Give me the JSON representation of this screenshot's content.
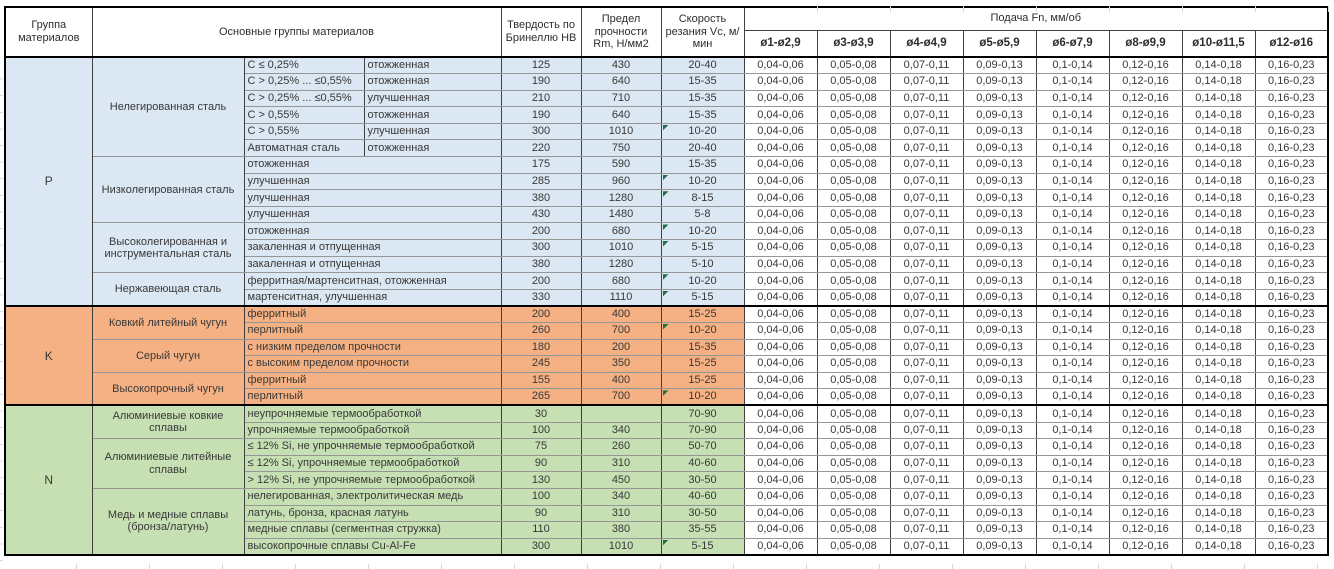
{
  "header": {
    "group_col": "Группа материалов",
    "materials_col": "Основные группы материалов",
    "hardness_col": "Твердость по Бринеллю HB",
    "strength_col": "Предел прочности Rm, Н/мм2",
    "speed_col": "Скорость резания Vc, м/мин",
    "feed_title": "Подача Fn, мм/об",
    "feed_cols": [
      "ø1-ø2,9",
      "ø3-ø3,9",
      "ø4-ø4,9",
      "ø5-ø5,9",
      "ø6-ø7,9",
      "ø8-ø9,9",
      "ø10-ø11,5",
      "ø12-ø16"
    ]
  },
  "feed_values": [
    "0,04-0,06",
    "0,05-0,08",
    "0,07-0,11",
    "0,09-0,13",
    "0,1-0,14",
    "0,12-0,16",
    "0,14-0,18",
    "0,16-0,23"
  ],
  "colors": {
    "steel_blue": "#dbe7f3",
    "cast_iron_orange": "#f5b183",
    "nonferrous_green": "#c6e0b4",
    "marker_green": "#1e7145",
    "border_dark": "#404040"
  },
  "groups": [
    {
      "code": "P",
      "color": "#dbe7f3",
      "families": [
        {
          "name": "Нелегированная сталь",
          "rows": [
            {
              "a": "C ≤ 0,25%",
              "b": "отожженная",
              "hb": "125",
              "rm": "430",
              "vc": "20-40",
              "m": 0
            },
            {
              "a": "C > 0,25% ... ≤0,55%",
              "b": "отожженная",
              "hb": "190",
              "rm": "640",
              "vc": "15-35",
              "m": 0
            },
            {
              "a": "C > 0,25% ... ≤0,55%",
              "b": "улучшенная",
              "hb": "210",
              "rm": "710",
              "vc": "15-35",
              "m": 0
            },
            {
              "a": "C > 0,55%",
              "b": "отожженная",
              "hb": "190",
              "rm": "640",
              "vc": "15-35",
              "m": 0
            },
            {
              "a": "C > 0,55%",
              "b": "улучшенная",
              "hb": "300",
              "rm": "1010",
              "vc": "10-20",
              "m": 1
            },
            {
              "a": "Автоматная сталь",
              "b": "отожженная",
              "hb": "220",
              "rm": "750",
              "vc": "20-40",
              "m": 0
            }
          ]
        },
        {
          "name": "Низколегированная сталь",
          "rows": [
            {
              "ab": "отожженная",
              "hb": "175",
              "rm": "590",
              "vc": "15-35",
              "m": 0
            },
            {
              "ab": "улучшенная",
              "hb": "285",
              "rm": "960",
              "vc": "10-20",
              "m": 1
            },
            {
              "ab": "улучшенная",
              "hb": "380",
              "rm": "1280",
              "vc": "8-15",
              "m": 1
            },
            {
              "ab": "улучшенная",
              "hb": "430",
              "rm": "1480",
              "vc": "5-8",
              "m": 0
            }
          ]
        },
        {
          "name": "Высоколегированная и инструментальная сталь",
          "rows": [
            {
              "ab": "отожженная",
              "hb": "200",
              "rm": "680",
              "vc": "10-20",
              "m": 1
            },
            {
              "ab": "закаленная и отпущенная",
              "hb": "300",
              "rm": "1010",
              "vc": "5-15",
              "m": 1
            },
            {
              "ab": "закаленная и отпущенная",
              "hb": "380",
              "rm": "1280",
              "vc": "5-10",
              "m": 0
            }
          ]
        },
        {
          "name": "Нержавеющая сталь",
          "rows": [
            {
              "ab": "ферритная/мартенситная, отожженная",
              "hb": "200",
              "rm": "680",
              "vc": "10-20",
              "m": 1
            },
            {
              "ab": "мартенситная, улучшенная",
              "hb": "330",
              "rm": "1110",
              "vc": "5-15",
              "m": 1
            }
          ]
        }
      ]
    },
    {
      "code": "K",
      "color": "#f5b183",
      "families": [
        {
          "name": "Ковкий литейный чугун",
          "rows": [
            {
              "ab": "ферритный",
              "hb": "200",
              "rm": "400",
              "vc": "15-25",
              "m": 0
            },
            {
              "ab": "перлитный",
              "hb": "260",
              "rm": "700",
              "vc": "10-20",
              "m": 1
            }
          ]
        },
        {
          "name": "Серый чугун",
          "rows": [
            {
              "ab": "с низким пределом прочности",
              "hb": "180",
              "rm": "200",
              "vc": "15-35",
              "m": 0
            },
            {
              "ab": "с высоким пределом прочности",
              "hb": "245",
              "rm": "350",
              "vc": "15-25",
              "m": 0
            }
          ]
        },
        {
          "name": "Высокопрочный чугун",
          "rows": [
            {
              "ab": "ферритный",
              "hb": "155",
              "rm": "400",
              "vc": "15-25",
              "m": 0
            },
            {
              "ab": "перлитный",
              "hb": "265",
              "rm": "700",
              "vc": "10-20",
              "m": 1
            }
          ]
        }
      ]
    },
    {
      "code": "N",
      "color": "#c6e0b4",
      "families": [
        {
          "name": "Алюминиевые ковкие сплавы",
          "rows": [
            {
              "ab": "неупрочняемые термообработкой",
              "hb": "30",
              "rm": "",
              "vc": "70-90",
              "m": 0
            },
            {
              "ab": "упрочняемые термообработкой",
              "hb": "100",
              "rm": "340",
              "vc": "70-90",
              "m": 0
            }
          ]
        },
        {
          "name": "Алюминиевые литейные сплавы",
          "rows": [
            {
              "ab": "≤ 12% Si, не упрочняемые термообработкой",
              "hb": "75",
              "rm": "260",
              "vc": "50-70",
              "m": 0
            },
            {
              "ab": "≤ 12% Si, упрочняемые термообработкой",
              "hb": "90",
              "rm": "310",
              "vc": "40-60",
              "m": 0
            },
            {
              "ab": "> 12% Si, не упрочняемые термообработкой",
              "hb": "130",
              "rm": "450",
              "vc": "30-50",
              "m": 0
            }
          ]
        },
        {
          "name": "Медь и медные сплавы (бронза/латунь)",
          "rows": [
            {
              "ab": "нелегированная, электролитическая медь",
              "hb": "100",
              "rm": "340",
              "vc": "40-60",
              "m": 0
            },
            {
              "ab": "латунь, бронза, красная латунь",
              "hb": "90",
              "rm": "310",
              "vc": "30-50",
              "m": 0
            },
            {
              "ab": "медные сплавы (сегментная стружка)",
              "hb": "110",
              "rm": "380",
              "vc": "35-55",
              "m": 0
            },
            {
              "ab": "высокопрочные сплавы Cu-Al-Fe",
              "hb": "300",
              "rm": "1010",
              "vc": "5-15",
              "m": 1
            }
          ]
        }
      ]
    }
  ]
}
